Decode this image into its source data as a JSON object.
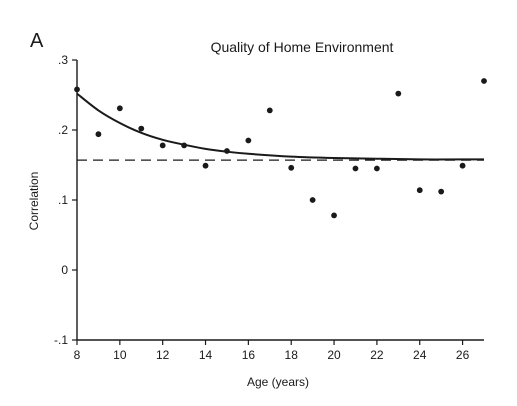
{
  "chart_data": {
    "type": "scatter",
    "panel_label": "A",
    "title": "Quality of Home Environment",
    "xlabel": "Age (years)",
    "ylabel": "Correlation",
    "xlim": [
      8,
      27
    ],
    "ylim": [
      -0.1,
      0.3
    ],
    "x_ticks": [
      8,
      10,
      12,
      14,
      16,
      18,
      20,
      22,
      24,
      26
    ],
    "x_tick_labels": [
      "8",
      "10",
      "12",
      "14",
      "16",
      "18",
      "20",
      "22",
      "24",
      "26"
    ],
    "y_ticks": [
      -0.1,
      0,
      0.1,
      0.2,
      0.3
    ],
    "y_tick_labels": [
      "-.1",
      "0",
      ".1",
      ".2",
      ".3"
    ],
    "grid": false,
    "legend": "none",
    "series": [
      {
        "kind": "points",
        "x": [
          8,
          9,
          10,
          11,
          12,
          13,
          14,
          15,
          16,
          17,
          18,
          19,
          20,
          21,
          22,
          23,
          24,
          25,
          26,
          27
        ],
        "y": [
          0.258,
          0.194,
          0.231,
          0.202,
          0.178,
          0.178,
          0.149,
          0.17,
          0.185,
          0.228,
          0.146,
          0.1,
          0.078,
          0.145,
          0.145,
          0.252,
          0.114,
          0.112,
          0.149,
          0.27
        ]
      },
      {
        "kind": "fitted-curve",
        "style": "solid",
        "x": [
          8,
          9,
          10,
          11,
          12,
          13,
          14,
          15,
          16,
          18,
          20,
          22,
          24,
          26,
          27
        ],
        "y": [
          0.252,
          0.228,
          0.21,
          0.196,
          0.186,
          0.179,
          0.173,
          0.169,
          0.166,
          0.162,
          0.16,
          0.159,
          0.158,
          0.158,
          0.158
        ]
      },
      {
        "kind": "reference-line",
        "style": "dashed",
        "x": [
          8,
          27
        ],
        "y": [
          0.157,
          0.157
        ]
      }
    ],
    "colors": {
      "ink": "#1a1a1a"
    }
  }
}
